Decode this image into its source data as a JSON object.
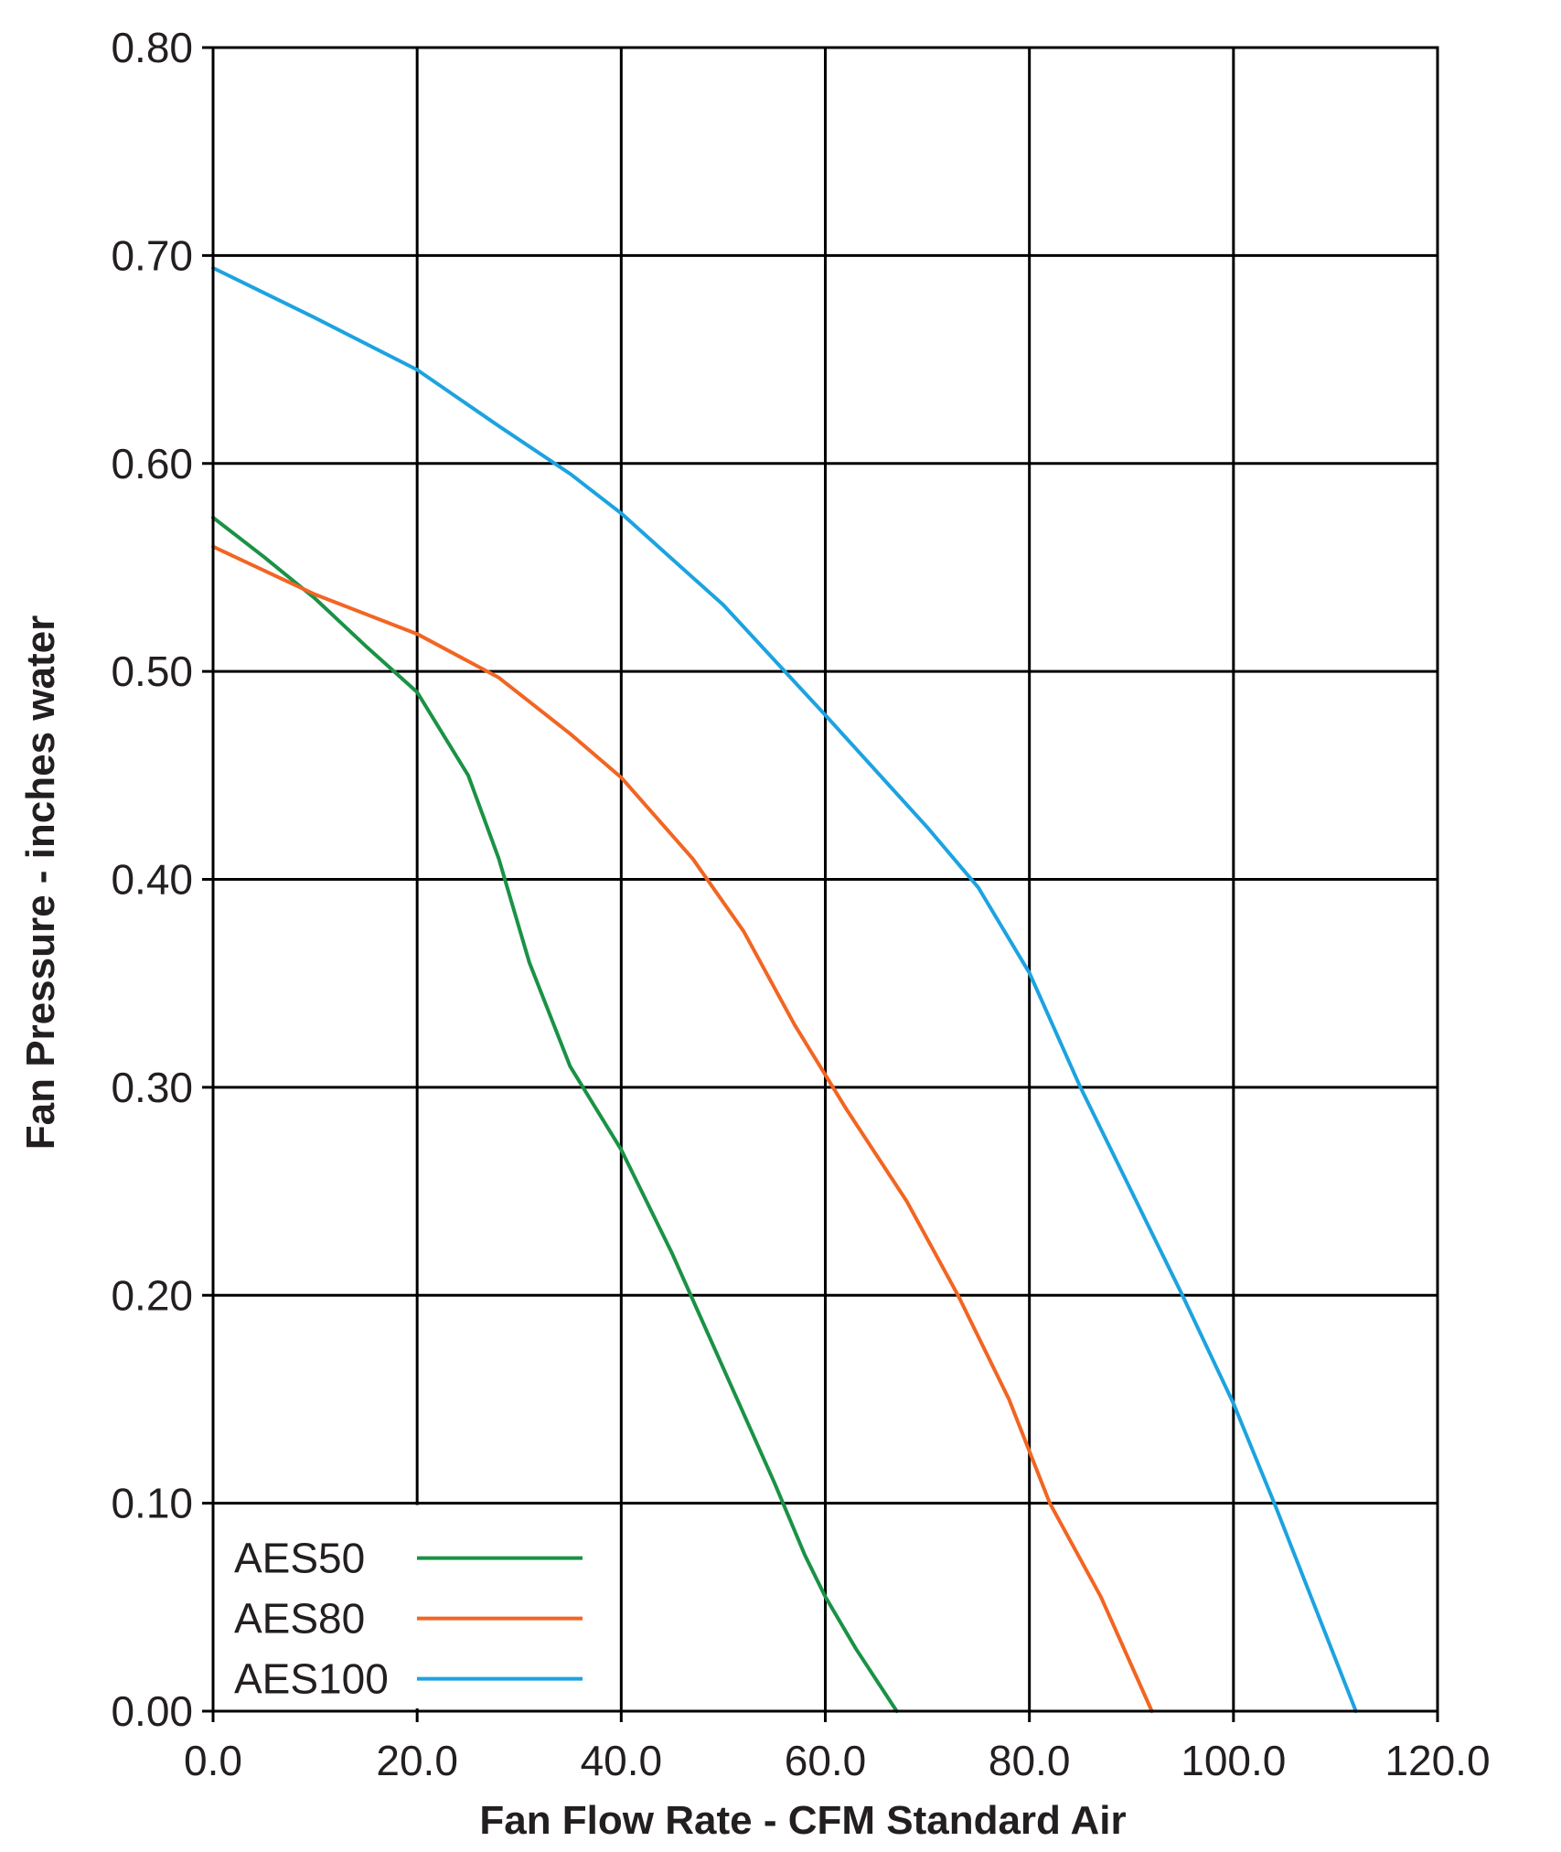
{
  "chart_data": {
    "type": "line",
    "title": "",
    "xlabel": "Fan Flow Rate - CFM Standard Air",
    "ylabel": "Fan Pressure - inches water",
    "xlim": [
      0,
      120
    ],
    "ylim": [
      0,
      0.8
    ],
    "x_tick_labels": [
      "0.0",
      "20.0",
      "40.0",
      "60.0",
      "80.0",
      "100.0",
      "120.0"
    ],
    "y_tick_labels": [
      "0.00",
      "0.10",
      "0.20",
      "0.30",
      "0.40",
      "0.50",
      "0.60",
      "0.70",
      "0.80"
    ],
    "grid": true,
    "legend_position": "bottom-left",
    "series": [
      {
        "name": "AES50",
        "color": "#1a9245",
        "points": [
          [
            0,
            0.574
          ],
          [
            5,
            0.555
          ],
          [
            10,
            0.535
          ],
          [
            15,
            0.512
          ],
          [
            20,
            0.49
          ],
          [
            25,
            0.45
          ],
          [
            28,
            0.41
          ],
          [
            31,
            0.36
          ],
          [
            35,
            0.31
          ],
          [
            40,
            0.27
          ],
          [
            45,
            0.22
          ],
          [
            50,
            0.165
          ],
          [
            55,
            0.11
          ],
          [
            58,
            0.075
          ],
          [
            60,
            0.055
          ],
          [
            63,
            0.03
          ],
          [
            67,
            0.0
          ]
        ]
      },
      {
        "name": "AES80",
        "color": "#f26522",
        "points": [
          [
            0,
            0.56
          ],
          [
            10,
            0.537
          ],
          [
            20,
            0.518
          ],
          [
            28,
            0.497
          ],
          [
            35,
            0.47
          ],
          [
            40,
            0.449
          ],
          [
            47,
            0.41
          ],
          [
            52,
            0.375
          ],
          [
            57,
            0.33
          ],
          [
            62,
            0.29
          ],
          [
            68,
            0.245
          ],
          [
            73,
            0.2
          ],
          [
            78,
            0.15
          ],
          [
            82,
            0.1
          ],
          [
            87,
            0.055
          ],
          [
            92,
            0.0
          ]
        ]
      },
      {
        "name": "AES100",
        "color": "#1ca3e0",
        "points": [
          [
            0,
            0.694
          ],
          [
            10,
            0.67
          ],
          [
            20,
            0.645
          ],
          [
            28,
            0.618
          ],
          [
            35,
            0.595
          ],
          [
            40,
            0.576
          ],
          [
            50,
            0.532
          ],
          [
            60,
            0.479
          ],
          [
            70,
            0.425
          ],
          [
            75,
            0.396
          ],
          [
            80,
            0.355
          ],
          [
            85,
            0.3
          ],
          [
            90,
            0.25
          ],
          [
            95,
            0.2
          ],
          [
            100,
            0.148
          ],
          [
            104,
            0.1
          ],
          [
            108,
            0.05
          ],
          [
            112,
            0.0
          ]
        ]
      }
    ]
  }
}
